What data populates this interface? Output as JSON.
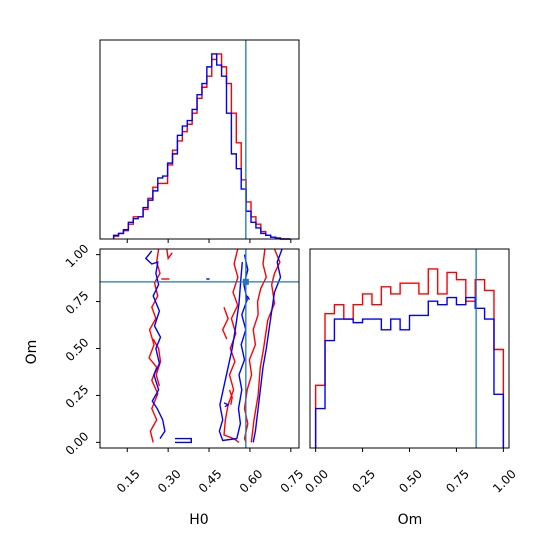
{
  "chart_data": {
    "type": "corner",
    "parameters": [
      "H0",
      "Om"
    ],
    "truth": {
      "H0": 0.585,
      "Om": 0.855
    },
    "series_colors": [
      "#ff0000",
      "#0000ff"
    ],
    "truth_color": "#1f77b4",
    "panels": {
      "h0_hist": {
        "type": "step-histogram",
        "xlim": [
          0.05,
          0.78
        ],
        "bins": [
          0.1,
          0.118,
          0.136,
          0.154,
          0.172,
          0.19,
          0.208,
          0.226,
          0.244,
          0.262,
          0.28,
          0.298,
          0.316,
          0.334,
          0.352,
          0.37,
          0.388,
          0.406,
          0.424,
          0.442,
          0.46,
          0.478,
          0.496,
          0.514,
          0.532,
          0.55,
          0.568,
          0.586,
          0.604,
          0.622,
          0.64,
          0.658,
          0.676,
          0.694,
          0.712,
          0.73,
          0.748
        ],
        "series": [
          {
            "values": [
              0.015,
              0.03,
              0.045,
              0.08,
              0.12,
              0.12,
              0.16,
              0.22,
              0.28,
              0.3,
              0.3,
              0.4,
              0.48,
              0.53,
              0.58,
              0.62,
              0.68,
              0.76,
              0.82,
              0.88,
              0.97,
              1.0,
              0.93,
              0.84,
              0.68,
              0.52,
              0.32,
              0.2,
              0.12,
              0.08,
              0.04,
              0.02,
              0.01,
              0.005,
              0.0,
              0.0
            ]
          },
          {
            "values": [
              0.02,
              0.03,
              0.05,
              0.09,
              0.11,
              0.12,
              0.17,
              0.21,
              0.26,
              0.33,
              0.34,
              0.41,
              0.46,
              0.56,
              0.61,
              0.64,
              0.7,
              0.78,
              0.84,
              0.93,
              1.0,
              0.94,
              0.88,
              0.68,
              0.46,
              0.38,
              0.27,
              0.15,
              0.09,
              0.06,
              0.03,
              0.02,
              0.01,
              0.005,
              0.0,
              0.0
            ]
          }
        ]
      },
      "om_hist": {
        "type": "step-histogram",
        "xlim": [
          -0.03,
          1.03
        ],
        "bins": [
          0.0,
          0.05,
          0.1,
          0.15,
          0.2,
          0.25,
          0.3,
          0.35,
          0.4,
          0.45,
          0.5,
          0.55,
          0.6,
          0.65,
          0.7,
          0.75,
          0.8,
          0.85,
          0.9,
          0.95,
          1.0
        ],
        "series": [
          {
            "values": [
              0.35,
              0.75,
              0.8,
              0.72,
              0.8,
              0.86,
              0.8,
              0.9,
              0.86,
              0.92,
              0.92,
              0.86,
              1.0,
              0.86,
              0.98,
              0.94,
              0.82,
              0.94,
              0.88,
              0.55
            ]
          },
          {
            "values": [
              0.22,
              0.6,
              0.72,
              0.72,
              0.7,
              0.72,
              0.72,
              0.66,
              0.72,
              0.66,
              0.74,
              0.74,
              0.82,
              0.8,
              0.84,
              0.8,
              0.84,
              0.78,
              0.72,
              0.3
            ]
          }
        ]
      },
      "joint": {
        "type": "contour",
        "xlim": [
          0.05,
          0.78
        ],
        "ylim": [
          -0.03,
          1.03
        ],
        "series": [
          {
            "contours": [
              [
                [
                  0.265,
                  1.03
                ],
                [
                  0.258,
                  0.96
                ],
                [
                  0.27,
                  0.9
                ],
                [
                  0.25,
                  0.85
                ],
                [
                  0.262,
                  0.78
                ],
                [
                  0.24,
                  0.72
                ],
                [
                  0.255,
                  0.66
                ],
                [
                  0.232,
                  0.6
                ],
                [
                  0.248,
                  0.52
                ],
                [
                  0.23,
                  0.45
                ],
                [
                  0.258,
                  0.4
                ],
                [
                  0.24,
                  0.33
                ],
                [
                  0.262,
                  0.26
                ],
                [
                  0.24,
                  0.18
                ],
                [
                  0.258,
                  0.12
                ],
                [
                  0.235,
                  0.06
                ],
                [
                  0.245,
                  0.0
                ]
              ],
              [
                [
                  0.655,
                  1.03
                ],
                [
                  0.648,
                  0.95
                ],
                [
                  0.66,
                  0.88
                ],
                [
                  0.64,
                  0.82
                ],
                [
                  0.628,
                  0.75
                ],
                [
                  0.63,
                  0.68
                ],
                [
                  0.612,
                  0.6
                ],
                [
                  0.62,
                  0.52
                ],
                [
                  0.598,
                  0.44
                ],
                [
                  0.606,
                  0.36
                ],
                [
                  0.59,
                  0.28
                ],
                [
                  0.58,
                  0.18
                ],
                [
                  0.592,
                  0.1
                ],
                [
                  0.58,
                  0.02
                ],
                [
                  0.586,
                  0.0
                ]
              ],
              [
                [
                  0.245,
                  0.55
                ],
                [
                  0.265,
                  0.5
                ],
                [
                  0.272,
                  0.43
                ],
                [
                  0.256,
                  0.36
                ],
                [
                  0.268,
                  0.3
                ]
              ],
              [
                [
                  0.295,
                  1.03
                ],
                [
                  0.3,
                  0.98
                ],
                [
                  0.315,
                  1.01
                ]
              ],
              [
                [
                  0.555,
                  1.03
                ],
                [
                  0.542,
                  0.95
                ],
                [
                  0.556,
                  0.88
                ],
                [
                  0.538,
                  0.8
                ],
                [
                  0.555,
                  0.73
                ],
                [
                  0.532,
                  0.66
                ],
                [
                  0.548,
                  0.58
                ],
                [
                  0.528,
                  0.5
                ],
                [
                  0.545,
                  0.43
                ],
                [
                  0.525,
                  0.36
                ],
                [
                  0.54,
                  0.28
                ],
                [
                  0.52,
                  0.2
                ],
                [
                  0.51,
                  0.12
                ],
                [
                  0.505,
                  0.04
                ],
                [
                  0.54,
                  0.02
                ],
                [
                  0.56,
                  0.0
                ]
              ],
              [
                [
                  0.505,
                  0.72
                ],
                [
                  0.52,
                  0.66
                ],
                [
                  0.5,
                  0.6
                ],
                [
                  0.515,
                  0.55
                ]
              ],
              [
                [
                  0.525,
                  0.28
                ],
                [
                  0.535,
                  0.24
                ],
                [
                  0.53,
                  0.2
                ]
              ],
              [
                [
                  0.69,
                  1.03
                ],
                [
                  0.71,
                  0.96
                ],
                [
                  0.69,
                  0.9
                ],
                [
                  0.68,
                  0.84
                ],
                [
                  0.69,
                  0.74
                ],
                [
                  0.665,
                  0.65
                ],
                [
                  0.65,
                  0.5
                ],
                [
                  0.638,
                  0.4
                ],
                [
                  0.63,
                  0.25
                ],
                [
                  0.615,
                  0.12
                ],
                [
                  0.605,
                  0.0
                ]
              ],
              [
                [
                  0.275,
                  0.87
                ],
                [
                  0.305,
                  0.87
                ]
              ]
            ]
          },
          {
            "contours": [
              [
                [
                  0.24,
                  1.02
                ],
                [
                  0.218,
                  0.98
                ],
                [
                  0.24,
                  0.95
                ],
                [
                  0.262,
                  0.96
                ],
                [
                  0.255,
                  0.9
                ],
                [
                  0.265,
                  0.84
                ],
                [
                  0.245,
                  0.78
                ],
                [
                  0.268,
                  0.7
                ],
                [
                  0.25,
                  0.62
                ],
                [
                  0.272,
                  0.56
                ],
                [
                  0.255,
                  0.5
                ],
                [
                  0.268,
                  0.42
                ],
                [
                  0.248,
                  0.36
                ],
                [
                  0.265,
                  0.28
                ],
                [
                  0.242,
                  0.22
                ],
                [
                  0.26,
                  0.18
                ],
                [
                  0.28,
                  0.12
                ],
                [
                  0.288,
                  0.06
                ],
                [
                  0.27,
                  0.02
                ]
              ],
              [
                [
                  0.718,
                  1.03
                ],
                [
                  0.7,
                  0.96
                ],
                [
                  0.712,
                  0.88
                ],
                [
                  0.69,
                  0.8
                ],
                [
                  0.68,
                  0.7
                ],
                [
                  0.67,
                  0.6
                ],
                [
                  0.66,
                  0.5
                ],
                [
                  0.648,
                  0.4
                ],
                [
                  0.64,
                  0.3
                ],
                [
                  0.63,
                  0.18
                ],
                [
                  0.62,
                  0.06
                ],
                [
                  0.612,
                  0.0
                ]
              ],
              [
                [
                  0.58,
                  1.0
                ],
                [
                  0.592,
                  0.92
                ],
                [
                  0.578,
                  0.84
                ],
                [
                  0.59,
                  0.76
                ],
                [
                  0.57,
                  0.68
                ],
                [
                  0.585,
                  0.6
                ],
                [
                  0.568,
                  0.52
                ],
                [
                  0.58,
                  0.44
                ],
                [
                  0.56,
                  0.36
                ],
                [
                  0.57,
                  0.28
                ],
                [
                  0.558,
                  0.18
                ],
                [
                  0.565,
                  0.1
                ],
                [
                  0.552,
                  0.02
                ],
                [
                  0.5,
                  0.01
                ],
                [
                  0.488,
                  0.06
                ],
                [
                  0.5,
                  0.12
                ],
                [
                  0.49,
                  0.2
                ],
                [
                  0.505,
                  0.3
                ],
                [
                  0.52,
                  0.4
                ],
                [
                  0.535,
                  0.5
                ],
                [
                  0.548,
                  0.62
                ],
                [
                  0.56,
                  0.74
                ],
                [
                  0.566,
                  0.86
                ],
                [
                  0.572,
                  0.96
                ]
              ],
              [
                [
                  0.325,
                  0.02
                ],
                [
                  0.385,
                  0.02
                ],
                [
                  0.385,
                  0.0
                ],
                [
                  0.325,
                  0.0
                ]
              ],
              [
                [
                  0.59,
                  0.78
                ],
                [
                  0.598,
                  0.76
                ]
              ],
              [
                [
                  0.44,
                  0.87
                ],
                [
                  0.452,
                  0.87
                ]
              ],
              [
                [
                  0.505,
                  0.21
                ],
                [
                  0.52,
                  0.2
                ],
                [
                  0.508,
                  0.19
                ]
              ]
            ]
          }
        ]
      }
    },
    "x_ticks_h0": [
      0.15,
      0.3,
      0.45,
      0.6,
      0.75
    ],
    "x_tick_labels_h0": [
      "0.15",
      "0.30",
      "0.45",
      "0.60",
      "0.75"
    ],
    "y_ticks_om": [
      0.0,
      0.25,
      0.5,
      0.75,
      1.0
    ],
    "y_tick_labels_om": [
      "0.00",
      "0.25",
      "0.50",
      "0.75",
      "1.00"
    ],
    "x_ticks_om": [
      0.0,
      0.25,
      0.5,
      0.75,
      1.0
    ],
    "x_tick_labels_om": [
      "0.00",
      "0.25",
      "0.50",
      "0.75",
      "1.00"
    ],
    "xlabel_h0": "H0",
    "ylabel_om": "Om",
    "xlabel_om": "Om"
  }
}
